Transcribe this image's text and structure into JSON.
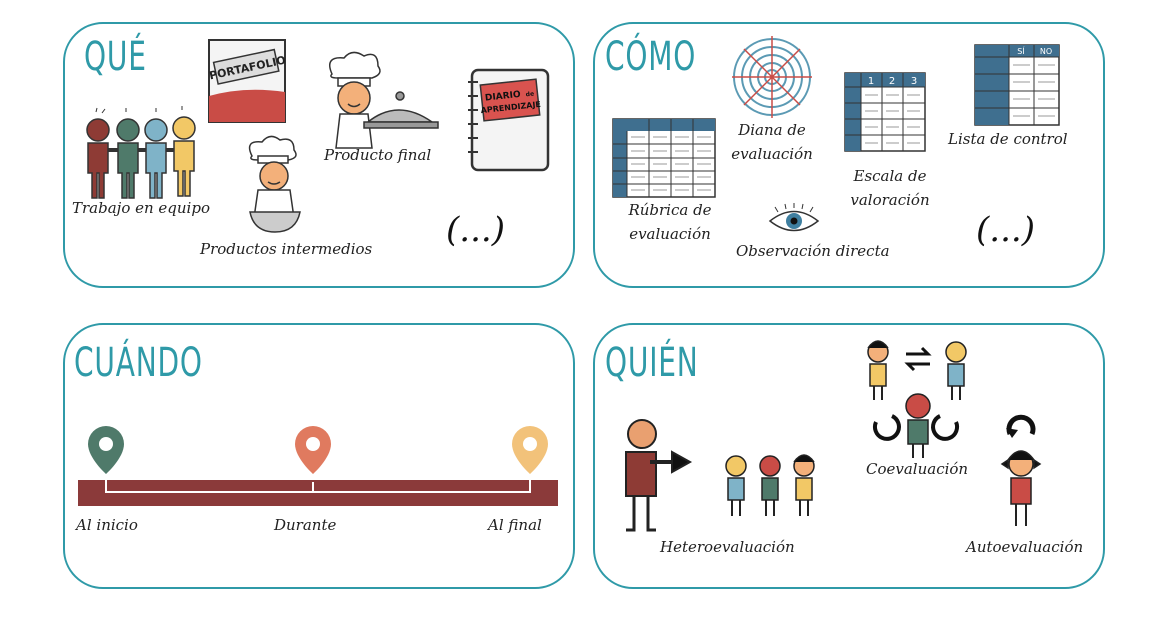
{
  "panels": {
    "que": {
      "title": "QUÉ",
      "items": {
        "trabajo_equipo": "Trabajo en equipo",
        "productos_intermedios": "Productos intermedios",
        "producto_final": "Producto final",
        "portafolio_text": "PORTAFOLIO",
        "diario_text_1": "DIARIO",
        "diario_text_small": "de",
        "diario_text_2": "APRENDIZAJE"
      },
      "more": "(...)"
    },
    "como": {
      "title": "CÓMO",
      "items": {
        "rubrica_1": "Rúbrica de",
        "rubrica_2": "evaluación",
        "diana_1": "Diana de",
        "diana_2": "evaluación",
        "escala_1": "Escala de",
        "escala_2": "valoración",
        "lista_control": "Lista de control",
        "observacion": "Observación directa",
        "escala_cols": [
          "1",
          "2",
          "3"
        ],
        "lista_cols": [
          "SÍ",
          "NO"
        ]
      },
      "more": "(...)"
    },
    "cuando": {
      "title": "CUÁNDO",
      "items": {
        "inicio": "Al inicio",
        "durante": "Durante",
        "final": "Al final"
      },
      "pin_colors": [
        "#4f7a6a",
        "#e07a5f",
        "#f2c27a"
      ]
    },
    "quien": {
      "title": "QUIÉN",
      "items": {
        "hetero": "Heteroevaluación",
        "co": "Coevaluación",
        "auto": "Autoevaluación"
      }
    }
  },
  "colors": {
    "teal": "#2f9aa8",
    "timeline": "#8b3a3a"
  }
}
